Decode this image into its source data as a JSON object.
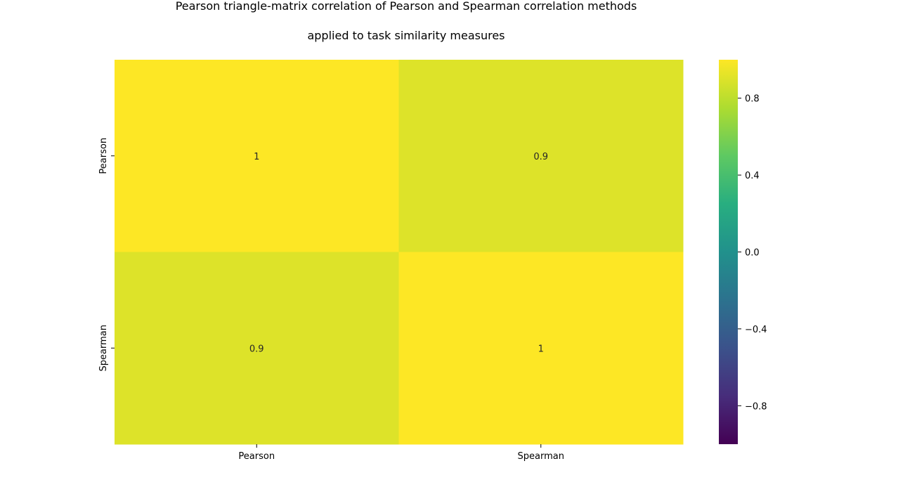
{
  "chart_data": {
    "type": "heatmap",
    "title_lines": [
      "Pearson triangle-matrix correlation of Pearson and Spearman correlation methods",
      "applied to task similarity measures"
    ],
    "x_categories": [
      "Pearson",
      "Spearman"
    ],
    "y_categories": [
      "Pearson",
      "Spearman"
    ],
    "values": [
      [
        1.0,
        0.9
      ],
      [
        0.9,
        1.0
      ]
    ],
    "annotations": [
      [
        "1",
        "0.9"
      ],
      [
        "0.9",
        "1"
      ]
    ],
    "colormap": "viridis",
    "vmin": -1,
    "vmax": 1,
    "colorbar_ticks": [
      {
        "value": 0.8,
        "label": "0.8"
      },
      {
        "value": 0.4,
        "label": "0.4"
      },
      {
        "value": 0.0,
        "label": "0.0"
      },
      {
        "value": -0.4,
        "label": "−0.4"
      },
      {
        "value": -0.8,
        "label": "−0.8"
      }
    ],
    "colorbar_position": "right"
  }
}
